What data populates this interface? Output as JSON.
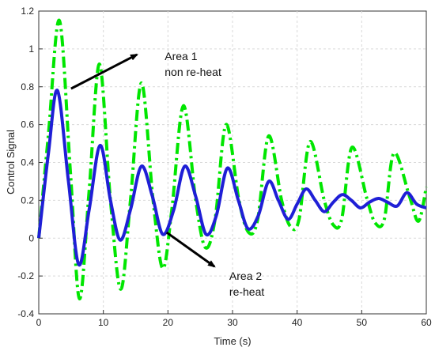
{
  "chart_data": {
    "type": "line",
    "title": "",
    "xlabel": "Time (s)",
    "ylabel": "Control Signal",
    "xlim": [
      0,
      60
    ],
    "ylim": [
      -0.4,
      1.2
    ],
    "xticks": [
      0,
      10,
      20,
      30,
      40,
      50,
      60
    ],
    "yticks": [
      -0.4,
      -0.2,
      0,
      0.2,
      0.4,
      0.6,
      0.8,
      1,
      1.2
    ],
    "xtick_labels": [
      "0",
      "10",
      "20",
      "30",
      "40",
      "50",
      "60"
    ],
    "ytick_labels": [
      "-0.4",
      "-0.2",
      "0",
      "0.2",
      "0.4",
      "0.6",
      "0.8",
      "1",
      "1.2"
    ],
    "grid": true,
    "legend": "none",
    "series": [
      {
        "color": "#00e600",
        "style": "dash-dot",
        "x": [
          0,
          1.5,
          3.2,
          4.9,
          6.3,
          7.8,
          9.4,
          11.1,
          12.7,
          14.2,
          15.9,
          17.7,
          19.2,
          20.6,
          22.4,
          24.3,
          25.8,
          27.3,
          29.0,
          31.0,
          32.5,
          33.9,
          35.6,
          37.6,
          39.0,
          40.3,
          42.0,
          44.2,
          45.6,
          46.9,
          48.5,
          50.8,
          52.1,
          53.5,
          55.0,
          57.4,
          58.8,
          60.0
        ],
        "values": [
          0,
          0.55,
          1.15,
          0.35,
          -0.32,
          0.25,
          0.92,
          0.2,
          -0.27,
          0.2,
          0.82,
          0.2,
          -0.16,
          0.15,
          0.7,
          0.2,
          -0.05,
          0.1,
          0.6,
          0.2,
          0.03,
          0.1,
          0.54,
          0.2,
          0.06,
          0.1,
          0.51,
          0.2,
          0.07,
          0.1,
          0.48,
          0.21,
          0.08,
          0.1,
          0.45,
          0.22,
          0.09,
          0.27
        ]
      },
      {
        "color": "#1f1fd6",
        "style": "solid",
        "x": [
          0,
          1.5,
          2.9,
          4.6,
          6.2,
          7.8,
          9.5,
          11.1,
          12.6,
          14.2,
          15.9,
          17.6,
          19.2,
          20.9,
          22.6,
          24.3,
          25.9,
          27.5,
          29.2,
          30.9,
          32.4,
          34.0,
          35.6,
          37.1,
          38.6,
          40.0,
          41.4,
          42.8,
          44.2,
          45.6,
          47.0,
          48.4,
          49.8,
          51.2,
          52.6,
          54.0,
          55.5,
          57.0,
          58.5,
          60.0
        ],
        "values": [
          0,
          0.45,
          0.78,
          0.3,
          -0.14,
          0.15,
          0.49,
          0.2,
          -0.01,
          0.15,
          0.38,
          0.22,
          0.02,
          0.15,
          0.38,
          0.22,
          0.02,
          0.12,
          0.37,
          0.2,
          0.05,
          0.12,
          0.3,
          0.2,
          0.1,
          0.18,
          0.26,
          0.2,
          0.14,
          0.19,
          0.23,
          0.2,
          0.16,
          0.19,
          0.21,
          0.19,
          0.17,
          0.24,
          0.18,
          0.16
        ]
      }
    ],
    "annotations": [
      {
        "lines": [
          "Area 1",
          "non re-heat"
        ],
        "text_at": [
          19.5,
          0.94
        ],
        "arrow_from": [
          5.0,
          0.79
        ],
        "arrow_to": [
          15.2,
          0.97
        ]
      },
      {
        "lines": [
          "Area 2",
          "re-heat"
        ],
        "text_at": [
          29.5,
          -0.22
        ],
        "arrow_from": [
          19.8,
          0.03
        ],
        "arrow_to": [
          27.2,
          -0.15
        ]
      }
    ]
  }
}
